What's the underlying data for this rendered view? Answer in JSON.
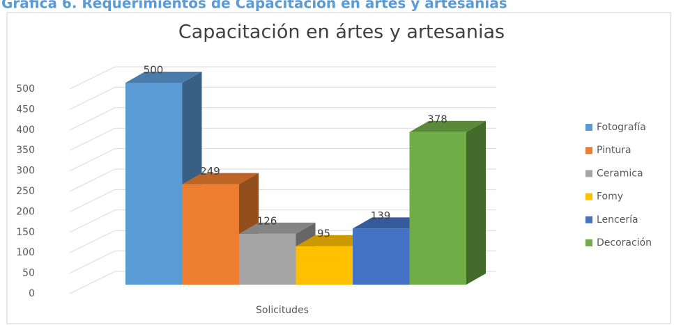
{
  "heading": "Gráfica 6. Requerimientos de Capacitación en artes y artesanias",
  "chart_data": {
    "type": "bar3d",
    "title": "Capacitación en ártes y artesanias",
    "categories": [
      "Solicitudes"
    ],
    "series": [
      {
        "name": "Fotografía",
        "color": "#5b9bd5",
        "values": [
          500
        ]
      },
      {
        "name": "Pintura",
        "color": "#ed7d31",
        "values": [
          249
        ]
      },
      {
        "name": "Ceramica",
        "color": "#a5a5a5",
        "values": [
          126
        ]
      },
      {
        "name": "Fomy",
        "color": "#ffc000",
        "values": [
          95
        ]
      },
      {
        "name": "Lencería",
        "color": "#4472c4",
        "values": [
          139
        ]
      },
      {
        "name": "Decoración",
        "color": "#70ad47",
        "values": [
          378
        ]
      }
    ],
    "ylim": [
      0,
      500
    ],
    "yticks": [
      0,
      50,
      100,
      150,
      200,
      250,
      300,
      350,
      400,
      450,
      500
    ],
    "grid": true,
    "legend": "right"
  }
}
